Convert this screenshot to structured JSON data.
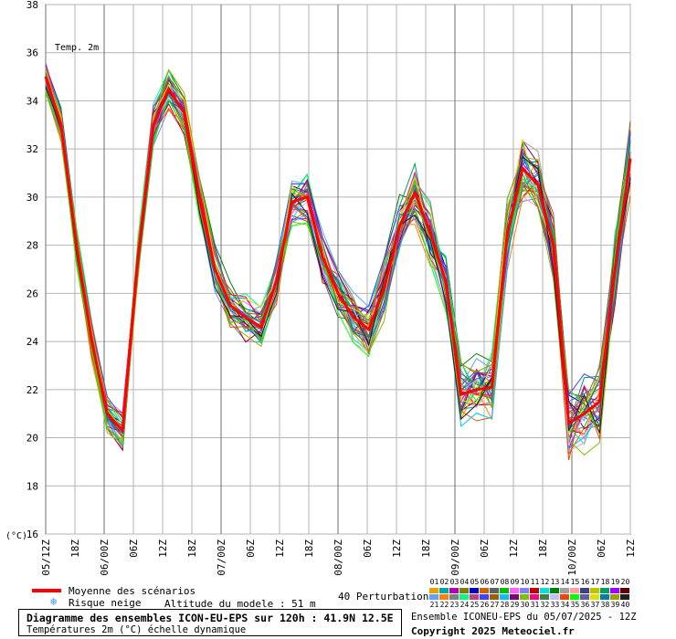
{
  "chart_data": {
    "type": "line",
    "title": "Temp. 2m",
    "ylabel": "(°C)",
    "ylim": [
      16,
      38
    ],
    "y_ticks": [
      16,
      18,
      20,
      22,
      24,
      26,
      28,
      30,
      32,
      34,
      36,
      38
    ],
    "x_ticks": [
      "05/12Z",
      "18Z",
      "06/00Z",
      "06Z",
      "12Z",
      "18Z",
      "07/00Z",
      "06Z",
      "12Z",
      "18Z",
      "08/00Z",
      "06Z",
      "12Z",
      "18Z",
      "09/00Z",
      "06Z",
      "12Z",
      "18Z",
      "10/00Z",
      "06Z",
      "12Z"
    ],
    "x_step_hours": 3,
    "grid": true,
    "mean_series": {
      "name": "Moyenne des scénarios",
      "color": "#ff0000",
      "values": [
        35.0,
        33.0,
        28.0,
        24.0,
        21.0,
        20.3,
        27.5,
        33.0,
        34.5,
        33.5,
        30.0,
        27.0,
        25.5,
        25.0,
        24.6,
        26.5,
        29.8,
        30.0,
        27.5,
        26.0,
        25.0,
        24.5,
        26.2,
        28.8,
        30.2,
        28.5,
        26.5,
        21.8,
        22.0,
        22.1,
        28.5,
        31.2,
        30.5,
        28.0,
        20.6,
        21.0,
        21.5,
        27.0,
        31.6
      ]
    },
    "ensemble_members": 40
  },
  "legend": {
    "mean_label": "Moyenne des scénarios",
    "snow_label": "Risque neige",
    "altitude_label": "Altitude du modele : 51 m",
    "perturbations_label": "40 Perturbations"
  },
  "perturbations": {
    "row1": [
      "01",
      "02",
      "03",
      "04",
      "05",
      "06",
      "07",
      "08",
      "09",
      "10",
      "11",
      "12",
      "13",
      "14",
      "15",
      "16",
      "17",
      "18",
      "19",
      "20"
    ],
    "row2": [
      "21",
      "22",
      "23",
      "24",
      "25",
      "26",
      "27",
      "28",
      "29",
      "30",
      "31",
      "32",
      "33",
      "34",
      "35",
      "36",
      "37",
      "38",
      "39",
      "40"
    ],
    "colors_row1": [
      "#e8a000",
      "#00a8a8",
      "#b000b0",
      "#808000",
      "#0000c0",
      "#d06000",
      "#606060",
      "#00c000",
      "#ff60ff",
      "#8080ff",
      "#c00000",
      "#00e0e0",
      "#008000",
      "#a0a0a0",
      "#ffa0a0",
      "#404080",
      "#c0c000",
      "#00a060",
      "#a000ff",
      "#600000"
    ],
    "colors_row2": [
      "#60a0ff",
      "#ff8000",
      "#808080",
      "#00ff80",
      "#c04080",
      "#4040ff",
      "#a06000",
      "#00c0ff",
      "#800080",
      "#80c000",
      "#ff0080",
      "#408040",
      "#c0c0ff",
      "#ff4000",
      "#00ff00",
      "#6060a0",
      "#e0e000",
      "#0080a0",
      "#a0a000",
      "#202020"
    ]
  },
  "footer": {
    "diagram_title": "Diagramme des ensembles ICON-EU-EPS sur 120h : 41.9N 12.5E",
    "subtitle": "Températures 2m (°C) échelle dynamique",
    "run_info": "Ensemble ICONEU-EPS du 05/07/2025 - 12Z",
    "copyright": "Copyright 2025 Meteociel.fr"
  }
}
